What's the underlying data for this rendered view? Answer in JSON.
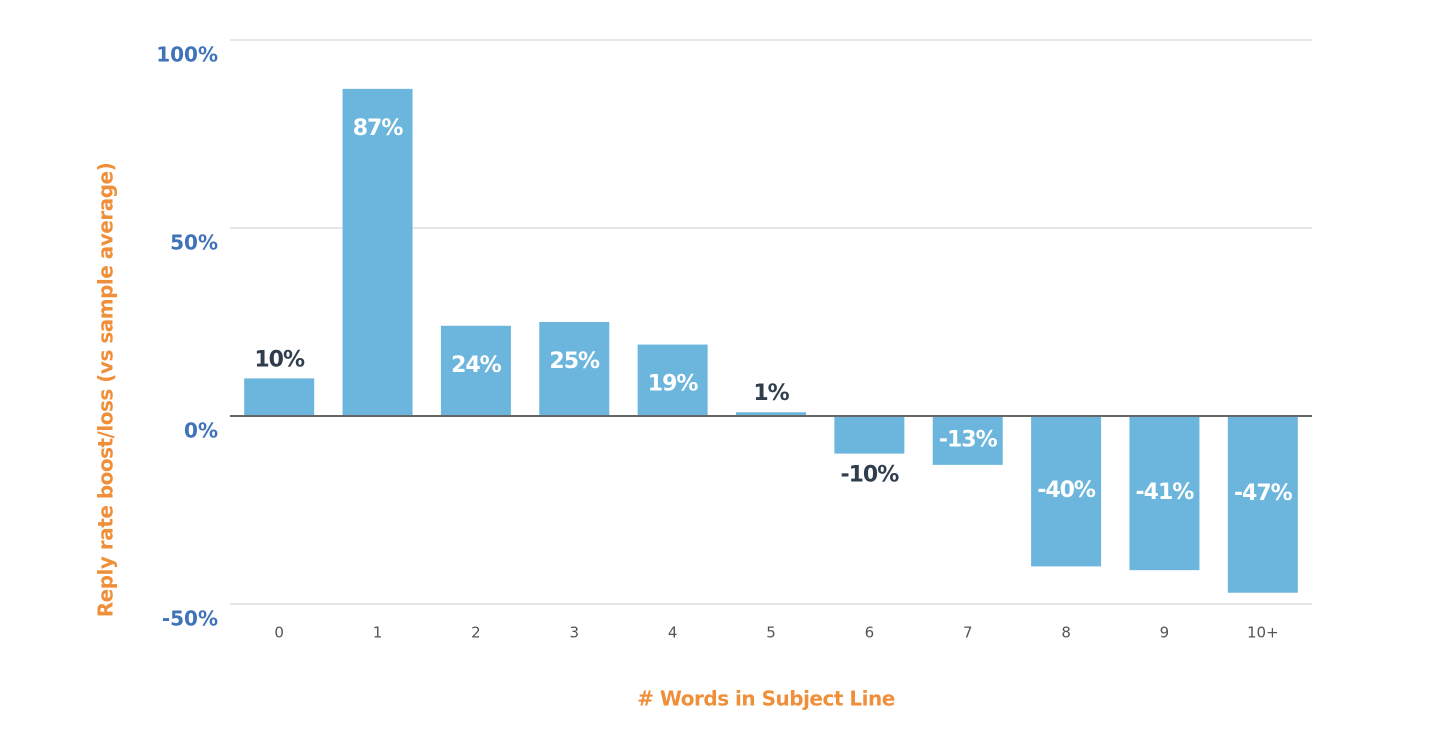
{
  "chart_data": {
    "type": "bar",
    "categories": [
      "0",
      "1",
      "2",
      "3",
      "4",
      "5",
      "6",
      "7",
      "8",
      "9",
      "10+"
    ],
    "values": [
      10,
      87,
      24,
      25,
      19,
      1,
      -10,
      -13,
      -40,
      -41,
      -47
    ],
    "value_labels": [
      "10%",
      "87%",
      "24%",
      "25%",
      "19%",
      "1%",
      "-10%",
      "-13%",
      "-40%",
      "-41%",
      "-47%"
    ],
    "color": "#6cb6dd",
    "ylim": [
      -50,
      100
    ],
    "yticks": [
      {
        "value": -50,
        "label": "-50%"
      },
      {
        "value": 0,
        "label": "0%"
      },
      {
        "value": 50,
        "label": "50%"
      },
      {
        "value": 100,
        "label": "100%"
      }
    ],
    "grid": true,
    "y_label": "Reply rate boost/loss (vs sample average)",
    "x_label": "# Words in Subject Line"
  }
}
